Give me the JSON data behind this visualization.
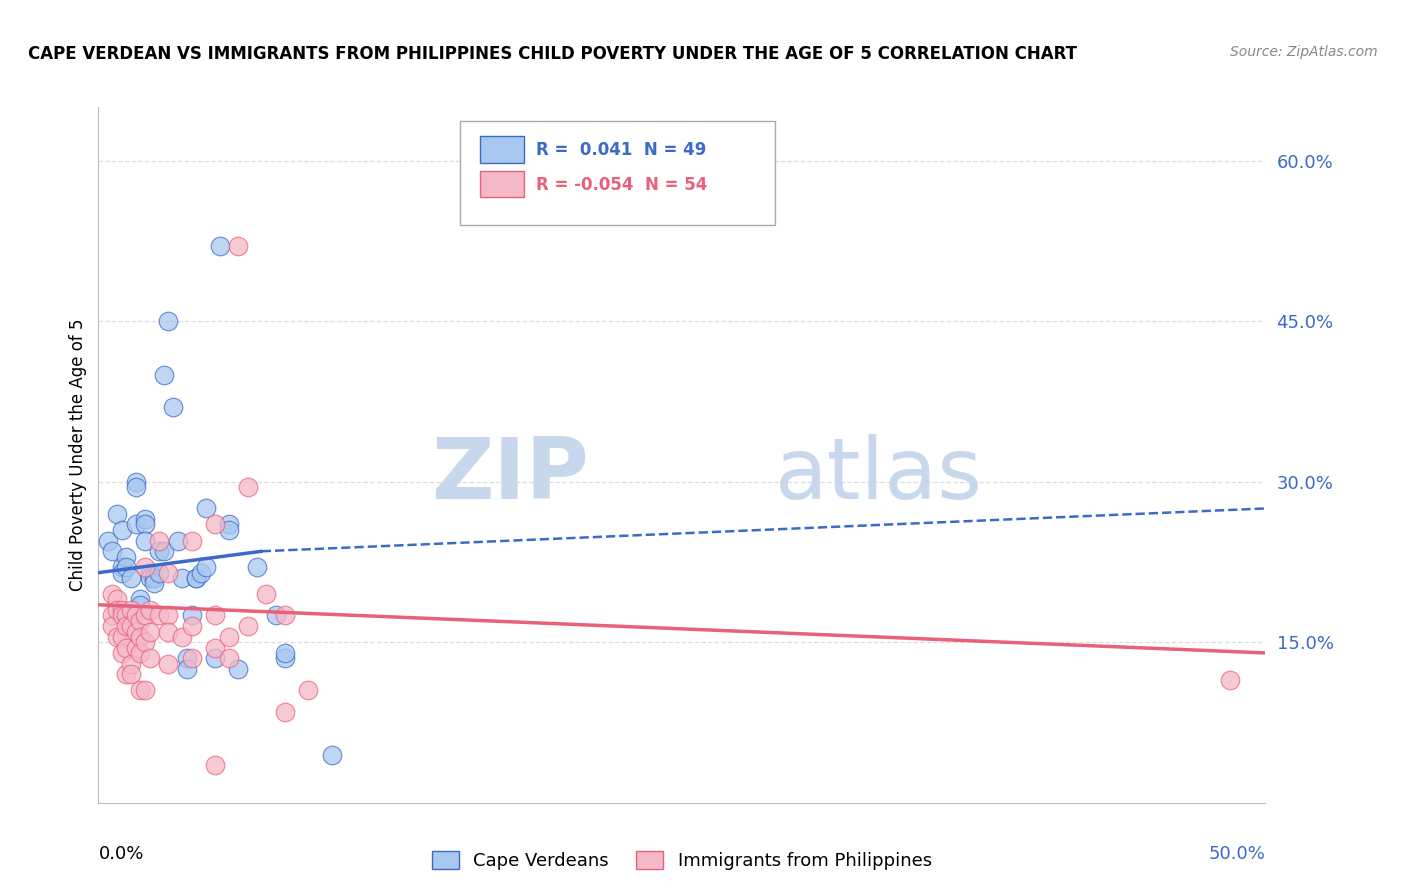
{
  "title": "CAPE VERDEAN VS IMMIGRANTS FROM PHILIPPINES CHILD POVERTY UNDER THE AGE OF 5 CORRELATION CHART",
  "source": "Source: ZipAtlas.com",
  "ylabel": "Child Poverty Under the Age of 5",
  "ytick_labels": [
    "60.0%",
    "45.0%",
    "30.0%",
    "15.0%"
  ],
  "ytick_vals": [
    60.0,
    45.0,
    30.0,
    15.0
  ],
  "xlim": [
    0.0,
    50.0
  ],
  "ylim": [
    0.0,
    65.0
  ],
  "legend_label1": "Cape Verdeans",
  "legend_label2": "Immigrants from Philippines",
  "blue_color": "#A8C8F0",
  "pink_color": "#F5B8C8",
  "blue_line_color": "#3B6AC8",
  "pink_line_color": "#E8607A",
  "blue_scatter": [
    [
      0.4,
      24.5
    ],
    [
      0.6,
      23.5
    ],
    [
      0.8,
      27.0
    ],
    [
      1.0,
      25.5
    ],
    [
      1.0,
      22.0
    ],
    [
      1.0,
      21.5
    ],
    [
      1.2,
      23.0
    ],
    [
      1.2,
      22.0
    ],
    [
      1.4,
      21.0
    ],
    [
      1.4,
      17.5
    ],
    [
      1.4,
      17.5
    ],
    [
      1.6,
      30.0
    ],
    [
      1.6,
      29.5
    ],
    [
      1.6,
      26.0
    ],
    [
      1.8,
      19.0
    ],
    [
      1.8,
      18.5
    ],
    [
      2.0,
      26.5
    ],
    [
      2.0,
      26.0
    ],
    [
      2.0,
      24.5
    ],
    [
      2.2,
      21.5
    ],
    [
      2.2,
      21.0
    ],
    [
      2.4,
      21.0
    ],
    [
      2.4,
      20.5
    ],
    [
      2.6,
      23.5
    ],
    [
      2.6,
      21.5
    ],
    [
      2.8,
      40.0
    ],
    [
      2.8,
      23.5
    ],
    [
      3.0,
      45.0
    ],
    [
      3.2,
      37.0
    ],
    [
      3.4,
      24.5
    ],
    [
      3.6,
      21.0
    ],
    [
      3.8,
      13.5
    ],
    [
      3.8,
      12.5
    ],
    [
      4.0,
      17.5
    ],
    [
      4.2,
      21.0
    ],
    [
      4.2,
      21.0
    ],
    [
      4.4,
      21.5
    ],
    [
      4.6,
      22.0
    ],
    [
      4.6,
      27.5
    ],
    [
      5.0,
      13.5
    ],
    [
      5.2,
      52.0
    ],
    [
      5.6,
      26.0
    ],
    [
      5.6,
      25.5
    ],
    [
      6.0,
      12.5
    ],
    [
      6.8,
      22.0
    ],
    [
      7.6,
      17.5
    ],
    [
      8.0,
      13.5
    ],
    [
      8.0,
      14.0
    ],
    [
      10.0,
      4.5
    ]
  ],
  "pink_scatter": [
    [
      0.6,
      19.5
    ],
    [
      0.6,
      17.5
    ],
    [
      0.6,
      16.5
    ],
    [
      0.8,
      19.0
    ],
    [
      0.8,
      18.0
    ],
    [
      0.8,
      15.5
    ],
    [
      1.0,
      18.0
    ],
    [
      1.0,
      17.5
    ],
    [
      1.0,
      15.5
    ],
    [
      1.0,
      14.0
    ],
    [
      1.2,
      17.5
    ],
    [
      1.2,
      16.5
    ],
    [
      1.2,
      14.5
    ],
    [
      1.2,
      12.0
    ],
    [
      1.4,
      18.0
    ],
    [
      1.4,
      16.5
    ],
    [
      1.4,
      13.0
    ],
    [
      1.4,
      12.0
    ],
    [
      1.6,
      17.5
    ],
    [
      1.6,
      16.0
    ],
    [
      1.6,
      14.5
    ],
    [
      1.8,
      17.0
    ],
    [
      1.8,
      15.5
    ],
    [
      1.8,
      14.0
    ],
    [
      1.8,
      10.5
    ],
    [
      2.0,
      22.0
    ],
    [
      2.0,
      17.5
    ],
    [
      2.0,
      15.0
    ],
    [
      2.0,
      10.5
    ],
    [
      2.2,
      18.0
    ],
    [
      2.2,
      16.0
    ],
    [
      2.2,
      13.5
    ],
    [
      2.6,
      24.5
    ],
    [
      2.6,
      17.5
    ],
    [
      3.0,
      21.5
    ],
    [
      3.0,
      17.5
    ],
    [
      3.0,
      16.0
    ],
    [
      3.0,
      13.0
    ],
    [
      3.6,
      15.5
    ],
    [
      4.0,
      24.5
    ],
    [
      4.0,
      16.5
    ],
    [
      4.0,
      13.5
    ],
    [
      5.0,
      26.0
    ],
    [
      5.0,
      17.5
    ],
    [
      5.0,
      14.5
    ],
    [
      5.6,
      15.5
    ],
    [
      5.6,
      13.5
    ],
    [
      6.0,
      52.0
    ],
    [
      6.4,
      29.5
    ],
    [
      6.4,
      16.5
    ],
    [
      7.2,
      19.5
    ],
    [
      8.0,
      17.5
    ],
    [
      8.0,
      8.5
    ],
    [
      9.0,
      10.5
    ],
    [
      5.0,
      3.5
    ],
    [
      48.5,
      11.5
    ]
  ],
  "watermark_zip": "ZIP",
  "watermark_atlas": "atlas",
  "watermark_color": "#C8D8EC",
  "background_color": "#FFFFFF",
  "grid_color": "#DDDDDD"
}
